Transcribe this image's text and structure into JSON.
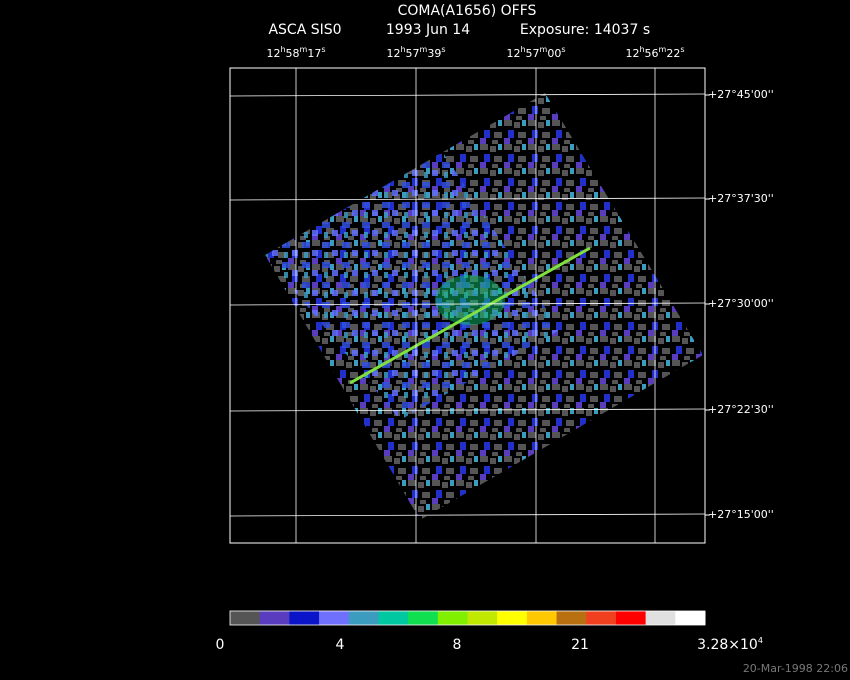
{
  "header": {
    "title": "COMA(A1656) OFFS",
    "instrument": "ASCA SIS0",
    "date": "1993 Jun 14",
    "exposure": "Exposure: 14037 s"
  },
  "ra_labels": [
    [
      "12",
      "h",
      "58",
      "m",
      "17",
      "s"
    ],
    [
      "12",
      "h",
      "57",
      "m",
      "39",
      "s"
    ],
    [
      "12",
      "h",
      "57",
      "m",
      "00",
      "s"
    ],
    [
      "12",
      "h",
      "56",
      "m",
      "22",
      "s"
    ]
  ],
  "dec_labels": [
    "+27°45'00''",
    "+27°37'30''",
    "+27°30'00''",
    "+27°22'30''",
    "+27°15'00''"
  ],
  "colorbar": {
    "colors": [
      "#555555",
      "#5a3cbe",
      "#0a14c8",
      "#7070ff",
      "#3c9cc0",
      "#00c8a0",
      "#10e050",
      "#80f000",
      "#c0e800",
      "#ffff00",
      "#ffc800",
      "#b87010",
      "#f04020",
      "#ff0000",
      "#e0e0e0",
      "#ffffff"
    ],
    "labels": [
      [
        "0"
      ],
      [
        "4"
      ],
      [
        "8"
      ],
      [
        "21"
      ],
      [
        "3.28×10",
        "4"
      ]
    ]
  },
  "timestamp": "20-Mar-1998 22:06"
}
